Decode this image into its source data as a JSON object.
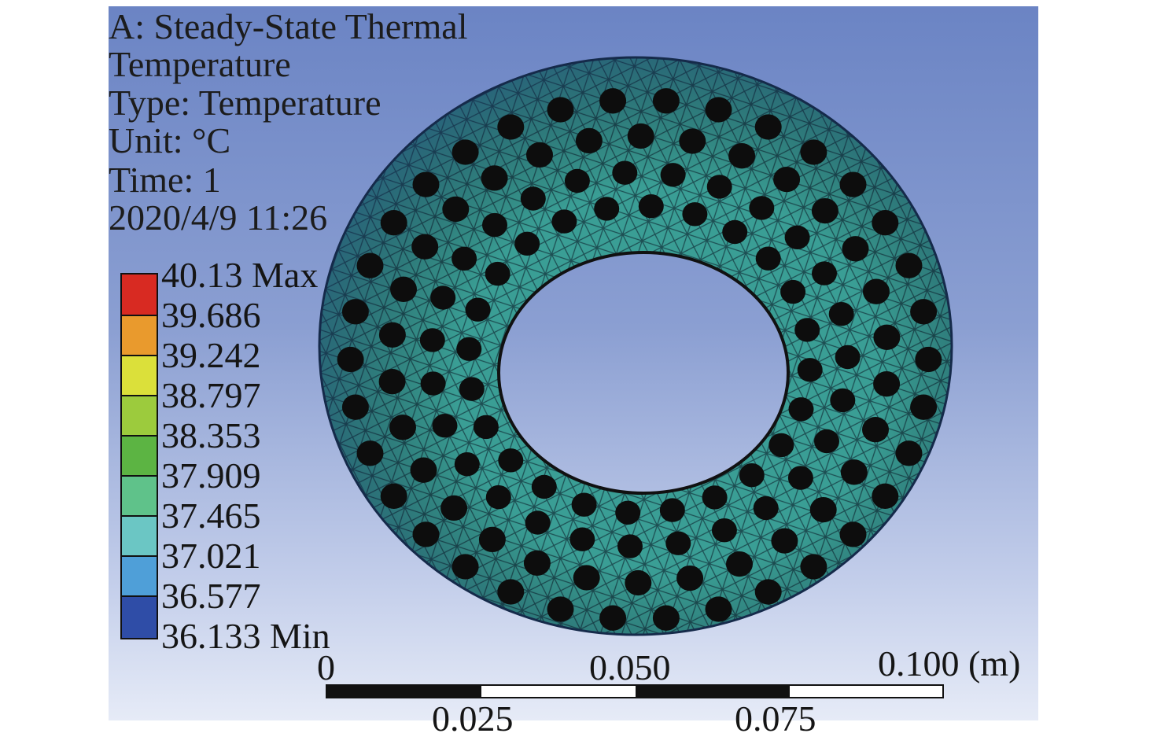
{
  "header": {
    "analysis": "A: Steady-State Thermal",
    "result_name": "Temperature",
    "type": "Type: Temperature",
    "unit": "Unit: °C",
    "time": "Time: 1",
    "timestamp": "2020/4/9 11:26"
  },
  "legend": {
    "labels": [
      "40.13 Max",
      "39.686",
      "39.242",
      "38.797",
      "38.353",
      "37.909",
      "37.465",
      "37.021",
      "36.577",
      "36.133 Min"
    ],
    "colors": [
      "#d82a22",
      "#e99a2d",
      "#dbe03a",
      "#9ccb3d",
      "#5cb443",
      "#5fc28a",
      "#6bc6c4",
      "#4f9fd8",
      "#2f4da7"
    ]
  },
  "scale": {
    "top_labels": [
      "0",
      "0.050",
      "0.100 (m)"
    ],
    "bottom_labels": [
      "0.025",
      "0.075"
    ]
  },
  "colors": {
    "mesh_fill": "#3da59a",
    "mesh_edge": "#1f5a5e",
    "hole": "#0d0d0d"
  }
}
